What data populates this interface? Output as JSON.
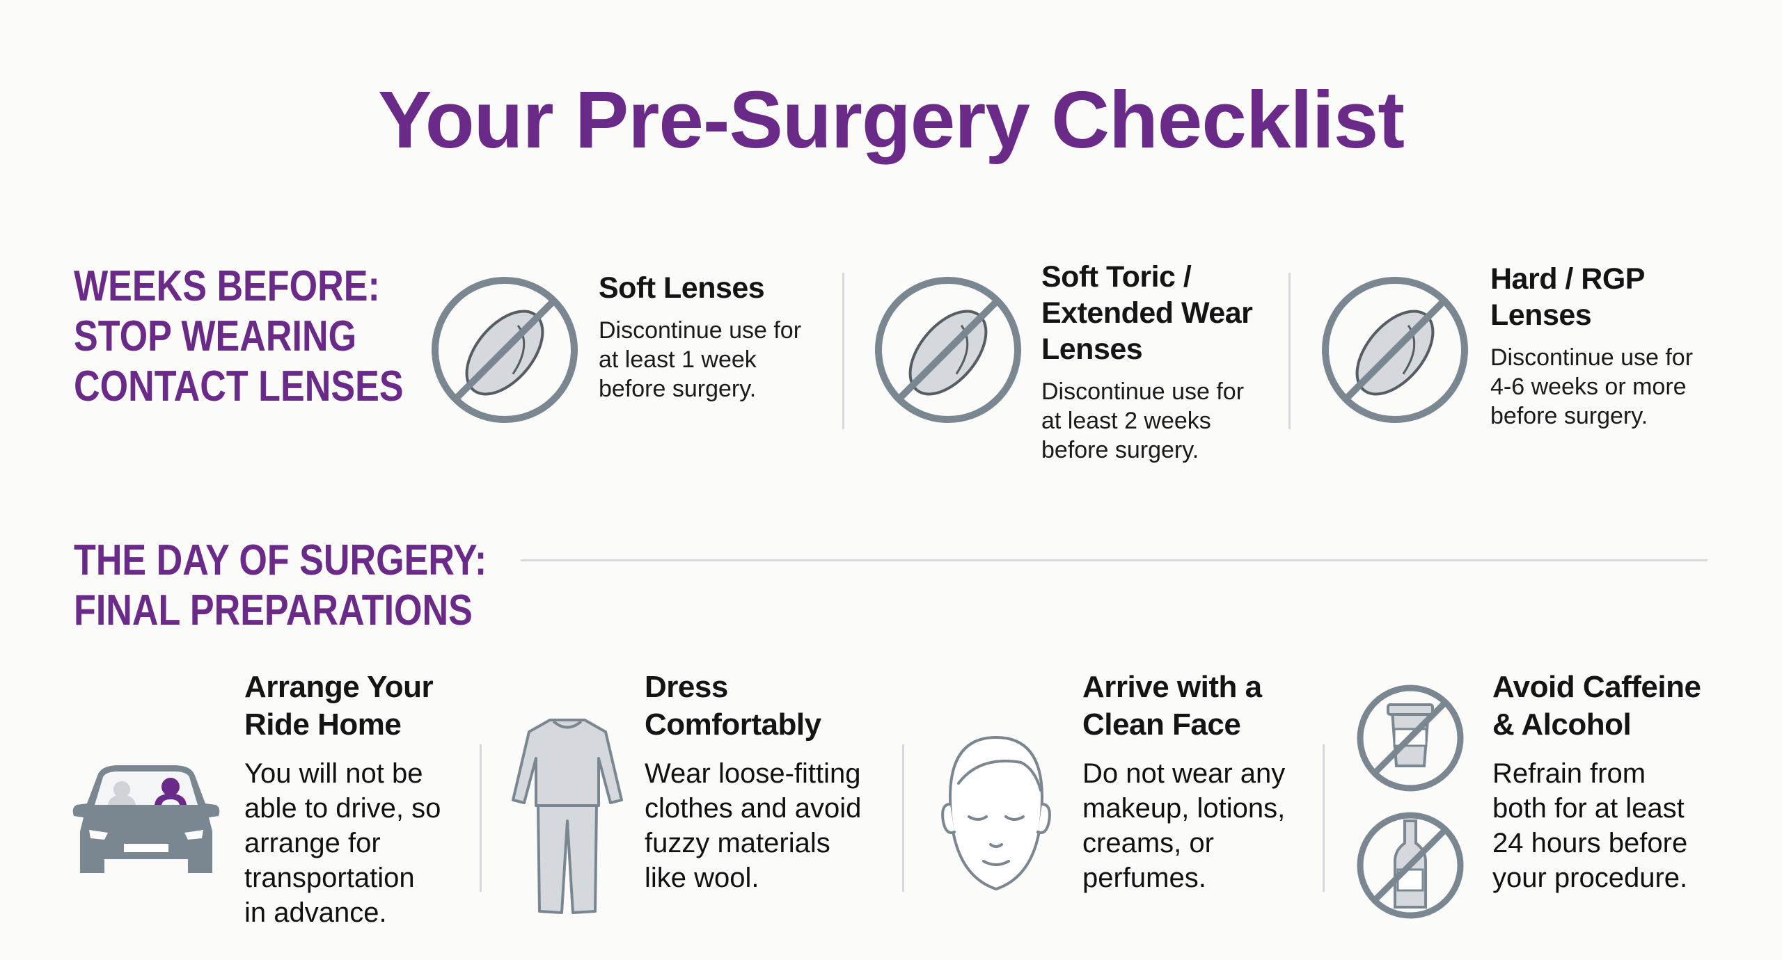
{
  "title": "Your Pre-Surgery Checklist",
  "colors": {
    "accent": "#6a2a88",
    "icon_gray": "#7b8790",
    "icon_fill": "#d5d9dd",
    "divider": "#d6d8da"
  },
  "weeks_before": {
    "heading": [
      "WEEKS BEFORE:",
      "STOP WEARING",
      "CONTACT LENSES"
    ],
    "items": [
      {
        "icon": "no-contact-lens-icon",
        "title": [
          "Soft Lenses"
        ],
        "body": [
          "Discontinue use for",
          "at least 1 week",
          "before surgery."
        ]
      },
      {
        "icon": "no-contact-lens-icon",
        "title": [
          "Soft Toric /",
          "Extended Wear",
          "Lenses"
        ],
        "body": [
          "Discontinue use for",
          "at least 2 weeks",
          "before surgery."
        ]
      },
      {
        "icon": "no-contact-lens-icon",
        "title": [
          "Hard / RGP",
          "Lenses"
        ],
        "body": [
          "Discontinue use for",
          "4-6 weeks or more",
          "before surgery."
        ]
      }
    ]
  },
  "day_of": {
    "heading": [
      "THE DAY OF SURGERY:",
      "FINAL PREPARATIONS"
    ],
    "items": [
      {
        "icon": "car-icon",
        "title": [
          "Arrange Your",
          "Ride Home"
        ],
        "body": [
          "You will not be",
          "able to drive, so",
          "arrange for",
          "transportation",
          "in advance."
        ]
      },
      {
        "icon": "clothing-icon",
        "title": [
          "Dress",
          "Comfortably"
        ],
        "body": [
          "Wear loose-fitting",
          "clothes and avoid",
          "fuzzy materials",
          "like wool."
        ]
      },
      {
        "icon": "face-icon",
        "title": [
          "Arrive with a",
          "Clean Face"
        ],
        "body": [
          "Do not wear any",
          "makeup, lotions,",
          "creams, or",
          "perfumes."
        ]
      },
      {
        "icon": "no-coffee-no-alcohol-icon",
        "title": [
          "Avoid Caffeine",
          "& Alcohol"
        ],
        "body": [
          "Refrain from",
          "both for at least",
          "24 hours before",
          "your procedure."
        ]
      }
    ]
  }
}
